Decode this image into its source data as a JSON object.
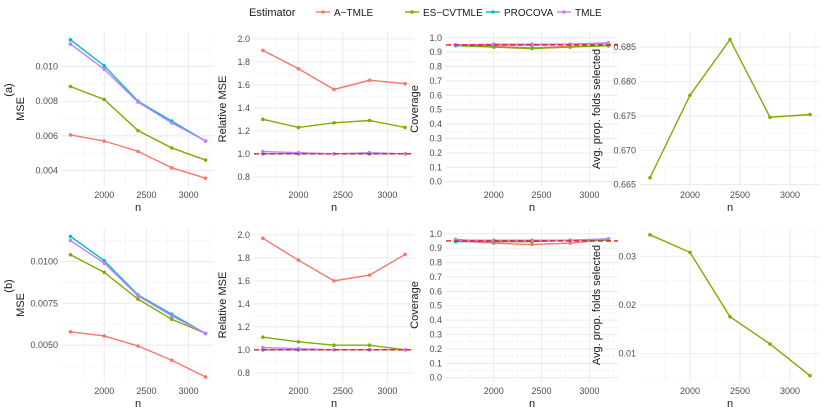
{
  "legend": {
    "title": "Estimator",
    "entries": [
      {
        "name": "A−TMLE",
        "color": "#F8766D"
      },
      {
        "name": "ES−CVTMLE",
        "color": "#7CAE00"
      },
      {
        "name": "PROCOVA",
        "color": "#00BFC4"
      },
      {
        "name": "TMLE",
        "color": "#C77CFF"
      }
    ]
  },
  "reference_line_color": "#E31A1C",
  "row_labels": [
    "(a)",
    "(b)"
  ],
  "chart_data": [
    {
      "type": "line",
      "row": "(a)",
      "xlabel": "n",
      "ylabel": "MSE",
      "xlim": [
        1500,
        3300
      ],
      "xticks": [
        2000,
        2500,
        3000
      ],
      "ylim": [
        0.0031,
        0.012
      ],
      "yticks": [
        0.004,
        0.006,
        0.008,
        0.01
      ],
      "yticklabels": [
        "0.004",
        "0.006",
        "0.008",
        "0.010"
      ],
      "x": [
        1600,
        2000,
        2400,
        2800,
        3200
      ],
      "series": [
        {
          "name": "A−TMLE",
          "values": [
            0.00605,
            0.0057,
            0.0051,
            0.00415,
            0.00355
          ]
        },
        {
          "name": "ES−CVTMLE",
          "values": [
            0.00885,
            0.0081,
            0.0063,
            0.0053,
            0.0046
          ]
        },
        {
          "name": "PROCOVA",
          "values": [
            0.01155,
            0.01005,
            0.008,
            0.00685,
            0.0057
          ]
        },
        {
          "name": "TMLE",
          "values": [
            0.0113,
            0.00985,
            0.00795,
            0.00675,
            0.0057
          ]
        }
      ]
    },
    {
      "type": "line",
      "row": "(a)",
      "xlabel": "n",
      "ylabel": "Relative MSE",
      "xlim": [
        1500,
        3300
      ],
      "xticks": [
        2000,
        2500,
        3000
      ],
      "ylim": [
        0.72,
        2.06
      ],
      "yticks": [
        0.8,
        1.0,
        1.2,
        1.4,
        1.6,
        1.8,
        2.0
      ],
      "yticklabels": [
        "0.8",
        "1.0",
        "1.2",
        "1.4",
        "1.6",
        "1.8",
        "2.0"
      ],
      "reference_y": 1.0,
      "x": [
        1600,
        2000,
        2400,
        2800,
        3200
      ],
      "series": [
        {
          "name": "A−TMLE",
          "values": [
            1.9,
            1.74,
            1.56,
            1.64,
            1.61
          ]
        },
        {
          "name": "ES−CVTMLE",
          "values": [
            1.3,
            1.23,
            1.27,
            1.29,
            1.23
          ]
        },
        {
          "name": "PROCOVA",
          "values": [
            1.0,
            1.0,
            1.0,
            1.0,
            1.0
          ]
        },
        {
          "name": "TMLE",
          "values": [
            1.02,
            1.01,
            1.0,
            1.01,
            1.0
          ]
        }
      ]
    },
    {
      "type": "line",
      "row": "(a)",
      "xlabel": "n",
      "ylabel": "Coverage",
      "xlim": [
        1500,
        3300
      ],
      "xticks": [
        2000,
        2500,
        3000
      ],
      "ylim": [
        -0.03,
        1.04
      ],
      "yticks": [
        0.0,
        0.1,
        0.2,
        0.3,
        0.4,
        0.5,
        0.6,
        0.7,
        0.8,
        0.9,
        1.0
      ],
      "yticklabels": [
        "0.0",
        "0.1",
        "0.2",
        "0.3",
        "0.4",
        "0.5",
        "0.6",
        "0.7",
        "0.8",
        "0.9",
        "1.0"
      ],
      "reference_y": 0.95,
      "x": [
        1600,
        2000,
        2400,
        2800,
        3200
      ],
      "series": [
        {
          "name": "A−TMLE",
          "values": [
            0.95,
            0.94,
            0.93,
            0.94,
            0.945
          ]
        },
        {
          "name": "ES−CVTMLE",
          "values": [
            0.945,
            0.935,
            0.925,
            0.935,
            0.945
          ]
        },
        {
          "name": "PROCOVA",
          "values": [
            0.945,
            0.95,
            0.95,
            0.955,
            0.96
          ]
        },
        {
          "name": "TMLE",
          "values": [
            0.95,
            0.955,
            0.955,
            0.955,
            0.965
          ]
        }
      ]
    },
    {
      "type": "line",
      "row": "(a)",
      "xlabel": "n",
      "ylabel": "Avg. prop. folds selected",
      "xlim": [
        1500,
        3300
      ],
      "xticks": [
        2000,
        2500,
        3000
      ],
      "ylim": [
        0.6648,
        0.6872
      ],
      "yticks": [
        0.665,
        0.67,
        0.675,
        0.68,
        0.685
      ],
      "yticklabels": [
        "0.665",
        "0.670",
        "0.675",
        "0.680",
        "0.685"
      ],
      "x": [
        1600,
        2000,
        2400,
        2800,
        3200
      ],
      "series": [
        {
          "name": "ES−CVTMLE",
          "values": [
            0.666,
            0.678,
            0.6861,
            0.6748,
            0.6752
          ]
        }
      ]
    },
    {
      "type": "line",
      "row": "(b)",
      "xlabel": "n",
      "ylabel": "MSE",
      "xlim": [
        1500,
        3300
      ],
      "xticks": [
        2000,
        2500,
        3000
      ],
      "ylim": [
        0.0028,
        0.012
      ],
      "yticks": [
        0.005,
        0.0075,
        0.01
      ],
      "yticklabels": [
        "0.0050",
        "0.0075",
        "0.0100"
      ],
      "x": [
        1600,
        2000,
        2400,
        2800,
        3200
      ],
      "series": [
        {
          "name": "A−TMLE",
          "values": [
            0.0058,
            0.00555,
            0.00495,
            0.0041,
            0.0031
          ]
        },
        {
          "name": "ES−CVTMLE",
          "values": [
            0.0104,
            0.00935,
            0.00775,
            0.00655,
            0.0057
          ]
        },
        {
          "name": "PROCOVA",
          "values": [
            0.0115,
            0.01005,
            0.008,
            0.00685,
            0.0057
          ]
        },
        {
          "name": "TMLE",
          "values": [
            0.01125,
            0.0099,
            0.00795,
            0.00675,
            0.0057
          ]
        }
      ]
    },
    {
      "type": "line",
      "row": "(b)",
      "xlabel": "n",
      "ylabel": "Relative MSE",
      "xlim": [
        1500,
        3300
      ],
      "xticks": [
        2000,
        2500,
        3000
      ],
      "ylim": [
        0.72,
        2.06
      ],
      "yticks": [
        0.8,
        1.0,
        1.2,
        1.4,
        1.6,
        1.8,
        2.0
      ],
      "yticklabels": [
        "0.8",
        "1.0",
        "1.2",
        "1.4",
        "1.6",
        "1.8",
        "2.0"
      ],
      "reference_y": 1.0,
      "x": [
        1600,
        2000,
        2400,
        2800,
        3200
      ],
      "series": [
        {
          "name": "A−TMLE",
          "values": [
            1.97,
            1.78,
            1.6,
            1.65,
            1.83
          ]
        },
        {
          "name": "ES−CVTMLE",
          "values": [
            1.11,
            1.07,
            1.04,
            1.04,
            1.0
          ]
        },
        {
          "name": "PROCOVA",
          "values": [
            1.0,
            1.0,
            1.0,
            1.0,
            1.0
          ]
        },
        {
          "name": "TMLE",
          "values": [
            1.02,
            1.01,
            1.0,
            1.0,
            1.0
          ]
        }
      ]
    },
    {
      "type": "line",
      "row": "(b)",
      "xlabel": "n",
      "ylabel": "Coverage",
      "xlim": [
        1500,
        3300
      ],
      "xticks": [
        2000,
        2500,
        3000
      ],
      "ylim": [
        -0.03,
        1.04
      ],
      "yticks": [
        0.0,
        0.1,
        0.2,
        0.3,
        0.4,
        0.5,
        0.6,
        0.7,
        0.8,
        0.9,
        1.0
      ],
      "yticklabels": [
        "0.0",
        "0.1",
        "0.2",
        "0.3",
        "0.4",
        "0.5",
        "0.6",
        "0.7",
        "0.8",
        "0.9",
        "1.0"
      ],
      "reference_y": 0.95,
      "x": [
        1600,
        2000,
        2400,
        2800,
        3200
      ],
      "series": [
        {
          "name": "A−TMLE",
          "values": [
            0.95,
            0.935,
            0.925,
            0.935,
            0.96
          ]
        },
        {
          "name": "ES−CVTMLE",
          "values": [
            0.96,
            0.945,
            0.945,
            0.955,
            0.955
          ]
        },
        {
          "name": "PROCOVA",
          "values": [
            0.945,
            0.95,
            0.95,
            0.955,
            0.96
          ]
        },
        {
          "name": "TMLE",
          "values": [
            0.955,
            0.955,
            0.955,
            0.955,
            0.965
          ]
        }
      ]
    },
    {
      "type": "line",
      "row": "(b)",
      "xlabel": "n",
      "ylabel": "Avg. prop. folds selected",
      "xlim": [
        1500,
        3300
      ],
      "xticks": [
        2000,
        2500,
        3000
      ],
      "ylim": [
        0.0042,
        0.0358
      ],
      "yticks": [
        0.01,
        0.02,
        0.03
      ],
      "yticklabels": [
        "0.01",
        "0.02",
        "0.03"
      ],
      "x": [
        1600,
        2000,
        2400,
        2800,
        3200
      ],
      "series": [
        {
          "name": "ES−CVTMLE",
          "values": [
            0.0344,
            0.0308,
            0.0176,
            0.012,
            0.0055
          ]
        }
      ]
    }
  ]
}
